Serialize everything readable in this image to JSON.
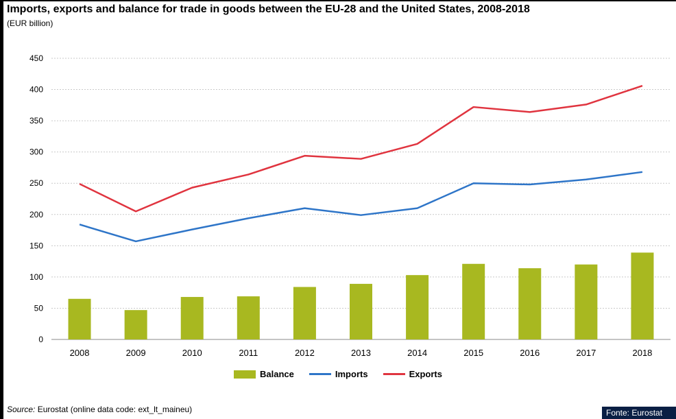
{
  "title": "Imports, exports and balance for trade in goods between the EU-28 and the United States, 2008-2018",
  "subtitle": "(EUR billion)",
  "source_label": "Source:",
  "source_text": "Eurostat (online data code: ext_lt_maineu)",
  "credit": "Fonte: Eurostat",
  "colors": {
    "balance": "#a8b820",
    "imports": "#2e75c8",
    "exports": "#e0343f",
    "grid": "#c9c9c9"
  },
  "chart_data": {
    "type": "bar",
    "categories": [
      "2008",
      "2009",
      "2010",
      "2011",
      "2012",
      "2013",
      "2014",
      "2015",
      "2016",
      "2017",
      "2018"
    ],
    "ylim": [
      0,
      450
    ],
    "yticks": [
      0,
      50,
      100,
      150,
      200,
      250,
      300,
      350,
      400,
      450
    ],
    "grid": true,
    "legend_position": "bottom",
    "series": [
      {
        "name": "Balance",
        "type": "bar",
        "values": [
          65,
          47,
          68,
          69,
          84,
          89,
          103,
          121,
          114,
          120,
          139
        ]
      },
      {
        "name": "Imports",
        "type": "line",
        "values": [
          184,
          157,
          176,
          194,
          210,
          199,
          210,
          250,
          248,
          256,
          268
        ]
      },
      {
        "name": "Exports",
        "type": "line",
        "values": [
          249,
          205,
          243,
          264,
          294,
          289,
          313,
          372,
          364,
          376,
          406
        ]
      }
    ]
  }
}
